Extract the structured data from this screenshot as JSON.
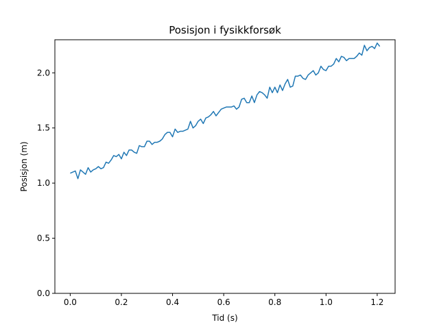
{
  "chart_data": {
    "type": "line",
    "title": "Posisjon i fysikkforsøk",
    "xlabel": "Tid (s)",
    "ylabel": "Posisjon (m)",
    "xlim": [
      -0.06,
      1.27
    ],
    "ylim": [
      0.0,
      2.3
    ],
    "xticks": [
      0.0,
      0.2,
      0.4,
      0.6,
      0.8,
      1.0,
      1.2
    ],
    "xtick_labels": [
      "0.0",
      "0.2",
      "0.4",
      "0.6",
      "0.8",
      "1.0",
      "1.2"
    ],
    "yticks": [
      0.0,
      0.5,
      1.0,
      1.5,
      2.0
    ],
    "ytick_labels": [
      "0.0",
      "0.5",
      "1.0",
      "1.5",
      "2.0"
    ],
    "grid": false,
    "colors": {
      "line": "#1f77b4"
    },
    "series": [
      {
        "x": [
          0.0,
          0.01,
          0.02,
          0.03,
          0.04,
          0.05,
          0.06,
          0.07,
          0.08,
          0.09,
          0.1,
          0.11,
          0.12,
          0.13,
          0.14,
          0.15,
          0.16,
          0.17,
          0.18,
          0.19,
          0.2,
          0.21,
          0.22,
          0.23,
          0.24,
          0.25,
          0.26,
          0.27,
          0.28,
          0.29,
          0.3,
          0.31,
          0.32,
          0.33,
          0.34,
          0.35,
          0.36,
          0.37,
          0.38,
          0.39,
          0.4,
          0.41,
          0.42,
          0.43,
          0.44,
          0.45,
          0.46,
          0.47,
          0.48,
          0.49,
          0.5,
          0.51,
          0.52,
          0.53,
          0.54,
          0.55,
          0.56,
          0.57,
          0.58,
          0.59,
          0.6,
          0.61,
          0.62,
          0.63,
          0.64,
          0.65,
          0.66,
          0.67,
          0.68,
          0.69,
          0.7,
          0.71,
          0.72,
          0.73,
          0.74,
          0.75,
          0.76,
          0.77,
          0.78,
          0.79,
          0.8,
          0.81,
          0.82,
          0.83,
          0.84,
          0.85,
          0.86,
          0.87,
          0.88,
          0.89,
          0.9,
          0.91,
          0.92,
          0.93,
          0.94,
          0.95,
          0.96,
          0.97,
          0.98,
          0.99,
          1.0,
          1.01,
          1.02,
          1.03,
          1.04,
          1.05,
          1.06,
          1.07,
          1.08,
          1.09,
          1.1,
          1.11,
          1.12,
          1.13,
          1.14,
          1.15,
          1.16,
          1.17,
          1.18,
          1.19,
          1.2,
          1.21
        ],
        "y": [
          1.09,
          1.1,
          1.11,
          1.04,
          1.12,
          1.1,
          1.08,
          1.14,
          1.1,
          1.12,
          1.13,
          1.15,
          1.13,
          1.14,
          1.19,
          1.18,
          1.21,
          1.25,
          1.24,
          1.26,
          1.22,
          1.28,
          1.25,
          1.3,
          1.3,
          1.28,
          1.27,
          1.34,
          1.33,
          1.33,
          1.38,
          1.38,
          1.35,
          1.37,
          1.37,
          1.38,
          1.4,
          1.44,
          1.46,
          1.46,
          1.42,
          1.49,
          1.46,
          1.47,
          1.47,
          1.48,
          1.49,
          1.56,
          1.5,
          1.52,
          1.56,
          1.58,
          1.54,
          1.59,
          1.6,
          1.62,
          1.65,
          1.61,
          1.64,
          1.67,
          1.68,
          1.69,
          1.69,
          1.69,
          1.7,
          1.67,
          1.69,
          1.76,
          1.77,
          1.73,
          1.73,
          1.79,
          1.73,
          1.8,
          1.83,
          1.82,
          1.8,
          1.77,
          1.87,
          1.82,
          1.87,
          1.82,
          1.89,
          1.84,
          1.9,
          1.94,
          1.87,
          1.88,
          1.97,
          1.97,
          1.98,
          1.95,
          1.94,
          1.98,
          2.0,
          2.02,
          1.98,
          2.0,
          2.06,
          2.03,
          2.02,
          2.06,
          2.06,
          2.08,
          2.13,
          2.1,
          2.15,
          2.14,
          2.11,
          2.13,
          2.13,
          2.13,
          2.15,
          2.18,
          2.16,
          2.25,
          2.2,
          2.23,
          2.24,
          2.22,
          2.27,
          2.24
        ]
      }
    ]
  }
}
